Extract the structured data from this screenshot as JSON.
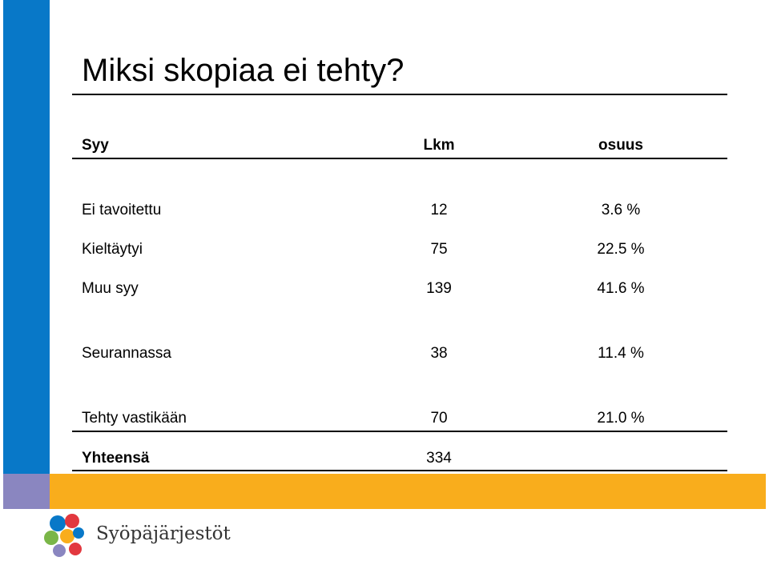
{
  "slide": {
    "title": "Miksi skopiaa ei tehty?"
  },
  "table": {
    "headers": [
      "Syy",
      "Lkm",
      "osuus"
    ],
    "rows": [
      {
        "reason": "Ei tavoitettu",
        "count": "12",
        "share": "3.6 %"
      },
      {
        "reason": "Kieltäytyi",
        "count": "75",
        "share": "22.5 %"
      },
      {
        "reason": "Muu syy",
        "count": "139",
        "share": "41.6 %"
      },
      {
        "reason": "Seurannassa",
        "count": "38",
        "share": "11.4 %"
      },
      {
        "reason": "Tehty vastikään",
        "count": "70",
        "share": "21.0 %"
      }
    ],
    "total": {
      "reason": "Yhteensä",
      "count": "334"
    }
  },
  "logo": {
    "text": "Syöpäjärjestöt",
    "colors": [
      "#0878c8",
      "#f9ad1c",
      "#e2383f",
      "#8a86c0",
      "#7ab648"
    ]
  },
  "colors": {
    "side_blue": "#0878c8",
    "side_purple": "#8a86c0",
    "bottom_orange": "#f9ad1c"
  }
}
